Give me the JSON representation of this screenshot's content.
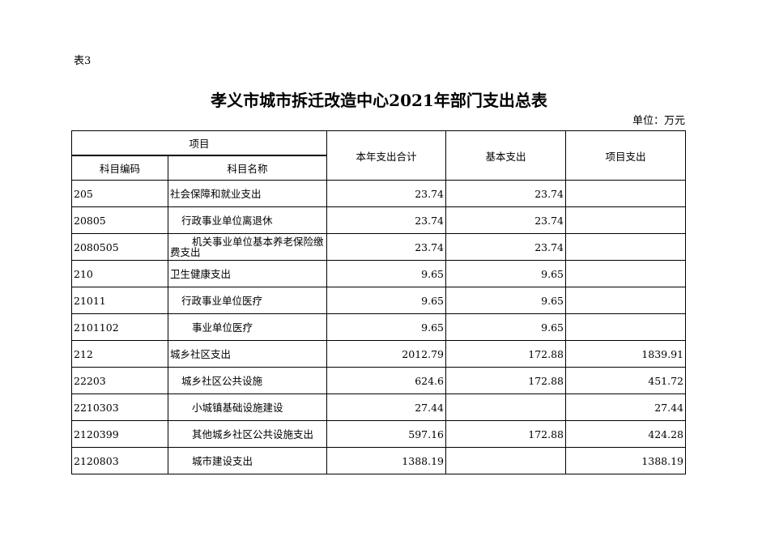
{
  "table_label": "表3",
  "title": "孝义市城市拆迁改造中心2021年部门支出总表",
  "unit": "单位：万元",
  "headers": {
    "project": "项目",
    "code": "科目编码",
    "name": "科目名称",
    "total": "本年支出合计",
    "basic": "基本支出",
    "project_exp": "项目支出"
  },
  "rows": [
    {
      "code": "205",
      "name": "社会保障和就业支出",
      "level": 1,
      "total": "23.74",
      "basic": "23.74",
      "project": ""
    },
    {
      "code": "20805",
      "name": "行政事业单位离退休",
      "level": 2,
      "total": "23.74",
      "basic": "23.74",
      "project": ""
    },
    {
      "code": "2080505",
      "name": "机关事业单位基本养老保险缴费支出",
      "level": 3,
      "total": "23.74",
      "basic": "23.74",
      "project": ""
    },
    {
      "code": "210",
      "name": "卫生健康支出",
      "level": 1,
      "total": "9.65",
      "basic": "9.65",
      "project": ""
    },
    {
      "code": "21011",
      "name": "行政事业单位医疗",
      "level": 2,
      "total": "9.65",
      "basic": "9.65",
      "project": ""
    },
    {
      "code": "2101102",
      "name": "事业单位医疗",
      "level": 3,
      "total": "9.65",
      "basic": "9.65",
      "project": ""
    },
    {
      "code": "212",
      "name": "城乡社区支出",
      "level": 1,
      "total": "2012.79",
      "basic": "172.88",
      "project": "1839.91"
    },
    {
      "code": "22203",
      "name": "城乡社区公共设施",
      "level": 2,
      "total": "624.6",
      "basic": "172.88",
      "project": "451.72"
    },
    {
      "code": "2210303",
      "name": "小城镇基础设施建设",
      "level": 3,
      "total": "27.44",
      "basic": "",
      "project": "27.44"
    },
    {
      "code": "2120399",
      "name": "其他城乡社区公共设施支出",
      "level": 3,
      "total": "597.16",
      "basic": "172.88",
      "project": "424.28"
    },
    {
      "code": "2120803",
      "name": "城市建设支出",
      "level": 3,
      "total": "1388.19",
      "basic": "",
      "project": "1388.19"
    }
  ]
}
